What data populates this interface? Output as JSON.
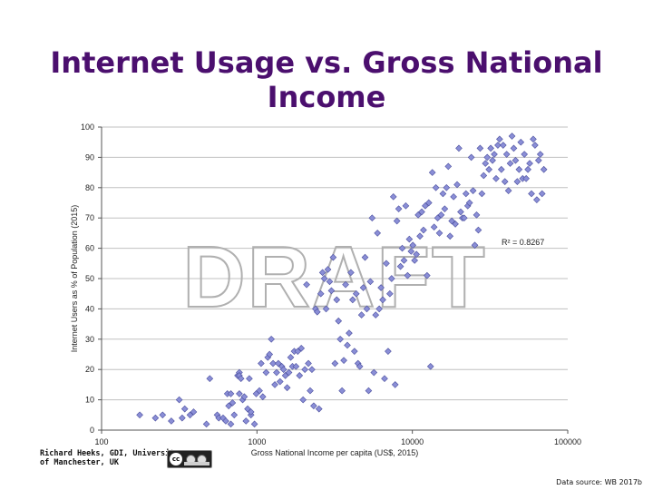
{
  "title_lines": [
    "Internet Usage vs. Gross National",
    "Income"
  ],
  "attribution": "Richard Heeks, GDI, University\nof Manchester, UK",
  "license_badge": {
    "text": "cc",
    "icon": "creative-commons-by-nc-icon"
  },
  "data_source": "Data source: WB 2017b",
  "watermark": "DRAFT",
  "colors": {
    "title": "#4b0f6e",
    "point_fill": "#8a8ed6",
    "point_stroke": "#4b4f9e",
    "grid": "#c0c0c0",
    "axis": "#555555",
    "watermark_stroke": "#b0b0b0"
  },
  "chart_data": {
    "type": "scatter",
    "xlabel": "Gross National Income per capita (US$, 2015)",
    "ylabel": "Internet Users as % of Population (2015)",
    "x_scale": "log",
    "xlim": [
      100,
      100000
    ],
    "ylim": [
      0,
      100
    ],
    "x_ticks": [
      100,
      1000,
      10000,
      100000
    ],
    "x_tick_labels": [
      "100",
      "1000",
      "10000",
      "100000"
    ],
    "y_ticks": [
      0,
      10,
      20,
      30,
      40,
      50,
      60,
      70,
      80,
      90,
      100
    ],
    "y_tick_labels": [
      "0",
      "10",
      "20",
      "30",
      "40",
      "50",
      "60",
      "70",
      "80",
      "90",
      "100"
    ],
    "grid": "horizontal",
    "annotation": "R² = 0.8267",
    "points": [
      [
        176,
        5
      ],
      [
        222,
        4
      ],
      [
        247,
        5
      ],
      [
        281,
        3
      ],
      [
        316,
        10
      ],
      [
        330,
        4
      ],
      [
        343,
        7
      ],
      [
        371,
        5
      ],
      [
        391,
        6
      ],
      [
        473,
        2
      ],
      [
        497,
        17
      ],
      [
        555,
        5
      ],
      [
        568,
        4
      ],
      [
        605,
        4
      ],
      [
        630,
        3
      ],
      [
        645,
        12
      ],
      [
        658,
        8
      ],
      [
        679,
        2
      ],
      [
        679,
        12
      ],
      [
        696,
        9
      ],
      [
        714,
        5
      ],
      [
        751,
        18
      ],
      [
        770,
        19
      ],
      [
        770,
        18
      ],
      [
        770,
        12
      ],
      [
        789,
        17
      ],
      [
        809,
        10
      ],
      [
        829,
        11
      ],
      [
        850,
        3
      ],
      [
        871,
        7
      ],
      [
        893,
        17
      ],
      [
        915,
        5
      ],
      [
        915,
        6
      ],
      [
        964,
        2
      ],
      [
        989,
        12
      ],
      [
        1037,
        13
      ],
      [
        1063,
        22
      ],
      [
        1090,
        11
      ],
      [
        1145,
        19
      ],
      [
        1174,
        24
      ],
      [
        1205,
        25
      ],
      [
        1237,
        30
      ],
      [
        1269,
        22
      ],
      [
        1303,
        15
      ],
      [
        1337,
        19
      ],
      [
        1372,
        22
      ],
      [
        1408,
        16
      ],
      [
        1445,
        21
      ],
      [
        1484,
        20
      ],
      [
        1523,
        18
      ],
      [
        1564,
        14
      ],
      [
        1605,
        19
      ],
      [
        1648,
        24
      ],
      [
        1692,
        21
      ],
      [
        1737,
        26
      ],
      [
        1783,
        21
      ],
      [
        1830,
        26
      ],
      [
        1879,
        18
      ],
      [
        1929,
        27
      ],
      [
        1981,
        10
      ],
      [
        2033,
        20
      ],
      [
        2087,
        48
      ],
      [
        2142,
        22
      ],
      [
        2200,
        13
      ],
      [
        2258,
        20
      ],
      [
        2318,
        8
      ],
      [
        2380,
        40
      ],
      [
        2443,
        39
      ],
      [
        2508,
        7
      ],
      [
        2575,
        45
      ],
      [
        2643,
        52
      ],
      [
        2714,
        50
      ],
      [
        2786,
        40
      ],
      [
        2860,
        53
      ],
      [
        2936,
        49
      ],
      [
        3014,
        46
      ],
      [
        3094,
        57
      ],
      [
        3176,
        22
      ],
      [
        3261,
        43
      ],
      [
        3347,
        36
      ],
      [
        3436,
        30
      ],
      [
        3528,
        13
      ],
      [
        3621,
        23
      ],
      [
        3718,
        48
      ],
      [
        3817,
        28
      ],
      [
        3918,
        32
      ],
      [
        4023,
        52
      ],
      [
        4129,
        43
      ],
      [
        4239,
        26
      ],
      [
        4352,
        45
      ],
      [
        4468,
        22
      ],
      [
        4587,
        21
      ],
      [
        4709,
        38
      ],
      [
        4834,
        47
      ],
      [
        4962,
        57
      ],
      [
        5094,
        40
      ],
      [
        5229,
        13
      ],
      [
        5368,
        49
      ],
      [
        5511,
        70
      ],
      [
        5657,
        19
      ],
      [
        5808,
        38
      ],
      [
        5962,
        65
      ],
      [
        6121,
        40
      ],
      [
        6283,
        47
      ],
      [
        6450,
        43
      ],
      [
        6622,
        17
      ],
      [
        6798,
        55
      ],
      [
        6979,
        26
      ],
      [
        7164,
        45
      ],
      [
        7355,
        50
      ],
      [
        7550,
        77
      ],
      [
        7751,
        15
      ],
      [
        7957,
        69
      ],
      [
        8169,
        73
      ],
      [
        8386,
        54
      ],
      [
        8609,
        60
      ],
      [
        8837,
        56
      ],
      [
        9072,
        74
      ],
      [
        9313,
        51
      ],
      [
        9561,
        63
      ],
      [
        9815,
        59
      ],
      [
        10075,
        61
      ],
      [
        10343,
        56
      ],
      [
        10618,
        58
      ],
      [
        10900,
        71
      ],
      [
        11190,
        64
      ],
      [
        11487,
        72
      ],
      [
        11793,
        66
      ],
      [
        12106,
        74
      ],
      [
        12428,
        51
      ],
      [
        12759,
        75
      ],
      [
        13098,
        21
      ],
      [
        13446,
        85
      ],
      [
        13803,
        67
      ],
      [
        14170,
        80
      ],
      [
        14547,
        70
      ],
      [
        14933,
        65
      ],
      [
        15330,
        71
      ],
      [
        15738,
        78
      ],
      [
        16156,
        73
      ],
      [
        16585,
        80
      ],
      [
        17026,
        87
      ],
      [
        17478,
        64
      ],
      [
        17943,
        69
      ],
      [
        18420,
        77
      ],
      [
        18909,
        68
      ],
      [
        19412,
        81
      ],
      [
        19928,
        93
      ],
      [
        20457,
        72
      ],
      [
        21001,
        70
      ],
      [
        21559,
        70
      ],
      [
        22132,
        78
      ],
      [
        22720,
        74
      ],
      [
        23324,
        75
      ],
      [
        23944,
        90
      ],
      [
        24580,
        79
      ],
      [
        25233,
        61
      ],
      [
        25904,
        71
      ],
      [
        26592,
        66
      ],
      [
        27299,
        93
      ],
      [
        28025,
        78
      ],
      [
        28770,
        84
      ],
      [
        29534,
        88
      ],
      [
        30319,
        90
      ],
      [
        31125,
        86
      ],
      [
        31952,
        93
      ],
      [
        32801,
        89
      ],
      [
        33673,
        91
      ],
      [
        34568,
        83
      ],
      [
        35487,
        94
      ],
      [
        36430,
        96
      ],
      [
        37398,
        86
      ],
      [
        38392,
        94
      ],
      [
        39413,
        82
      ],
      [
        40460,
        91
      ],
      [
        41535,
        79
      ],
      [
        42639,
        88
      ],
      [
        43773,
        97
      ],
      [
        44936,
        93
      ],
      [
        46130,
        89
      ],
      [
        47356,
        82
      ],
      [
        48615,
        86
      ],
      [
        49907,
        95
      ],
      [
        51234,
        83
      ],
      [
        52596,
        91
      ],
      [
        53993,
        83
      ],
      [
        55429,
        86
      ],
      [
        56902,
        88
      ],
      [
        58414,
        78
      ],
      [
        59967,
        96
      ],
      [
        61561,
        94
      ],
      [
        63197,
        76
      ],
      [
        64877,
        89
      ],
      [
        66601,
        91
      ],
      [
        68371,
        78
      ],
      [
        70188,
        86
      ]
    ]
  }
}
